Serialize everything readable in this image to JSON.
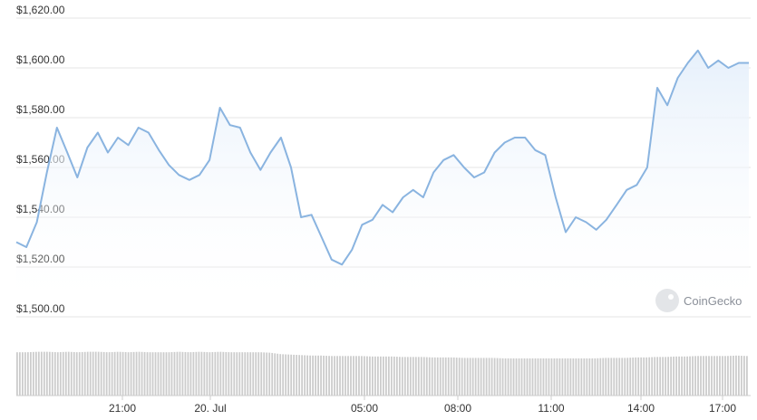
{
  "chart_data": {
    "type": "area",
    "title": "",
    "xlabel": "",
    "ylabel": "",
    "ylim": [
      1500,
      1620
    ],
    "y_ticks": [
      "$1,500.00",
      "$1,520.00",
      "$1,540.00",
      "$1,560.00",
      "$1,580.00",
      "$1,600.00",
      "$1,620.00"
    ],
    "x_ticks": [
      "21:00",
      "20. Jul",
      "05:00",
      "08:00",
      "11:00",
      "14:00",
      "17:00"
    ],
    "grid": true,
    "colors": {
      "line": "#8ab4e0",
      "area_top": "#e6f0fb",
      "grid": "#e6e6e6",
      "volume": "#cccccc"
    },
    "series": [
      {
        "name": "",
        "x_hours": [
          0,
          0.33,
          0.67,
          1.0,
          1.33,
          1.67,
          2.0,
          2.33,
          2.67,
          3.0,
          3.33,
          3.67,
          4.0,
          4.33,
          4.67,
          5.0,
          5.33,
          5.67,
          6.0,
          6.33,
          6.67,
          7.0,
          7.33,
          7.67,
          8.0,
          8.33,
          8.67,
          9.0,
          9.33,
          9.67,
          10.0,
          10.33,
          10.67,
          11.0,
          11.33,
          11.67,
          12.0,
          12.33,
          12.67,
          13.0,
          13.33,
          13.67,
          14.0,
          14.33,
          14.67,
          15.0,
          15.33,
          15.67,
          16.0,
          16.33,
          16.67,
          17.0,
          17.33,
          17.67,
          18.0,
          18.33,
          18.67,
          19.0,
          19.33,
          19.67,
          20.0,
          20.33,
          20.67,
          21.0,
          21.33,
          21.67,
          22.0,
          22.33,
          22.67,
          23.0,
          23.33,
          23.67,
          24.0
        ],
        "values": [
          1530,
          1528,
          1538,
          1558,
          1576,
          1566,
          1556,
          1568,
          1574,
          1566,
          1572,
          1569,
          1576,
          1574,
          1567,
          1561,
          1557,
          1555,
          1557,
          1563,
          1584,
          1577,
          1576,
          1566,
          1559,
          1566,
          1572,
          1560,
          1540,
          1541,
          1532,
          1523,
          1521,
          1527,
          1537,
          1539,
          1545,
          1542,
          1548,
          1551,
          1548,
          1558,
          1563,
          1565,
          1560,
          1556,
          1558,
          1566,
          1570,
          1572,
          1572,
          1567,
          1565,
          1548,
          1534,
          1540,
          1538,
          1535,
          1539,
          1545,
          1551,
          1553,
          1560,
          1592,
          1585,
          1596,
          1602,
          1607,
          1600,
          1603,
          1600,
          1602,
          1602
        ]
      }
    ],
    "volume_relative": [
      0.92,
      0.92,
      0.93,
      0.93,
      0.92,
      0.93,
      0.92,
      0.93,
      0.93,
      0.92,
      0.93,
      0.92,
      0.93,
      0.92,
      0.92,
      0.92,
      0.93,
      0.92,
      0.93,
      0.92,
      0.93,
      0.92,
      0.92,
      0.92,
      0.92,
      0.91,
      0.88,
      0.87,
      0.86,
      0.85,
      0.85,
      0.84,
      0.84,
      0.84,
      0.84,
      0.83,
      0.83,
      0.83,
      0.82,
      0.82,
      0.82,
      0.81,
      0.81,
      0.81,
      0.8,
      0.8,
      0.8,
      0.8,
      0.79,
      0.79,
      0.79,
      0.79,
      0.79,
      0.79,
      0.79,
      0.79,
      0.79,
      0.79,
      0.8,
      0.8,
      0.8,
      0.81,
      0.81,
      0.82,
      0.82,
      0.83,
      0.83,
      0.84,
      0.84,
      0.84,
      0.84,
      0.85,
      0.84
    ],
    "watermark": "CoinGecko"
  }
}
